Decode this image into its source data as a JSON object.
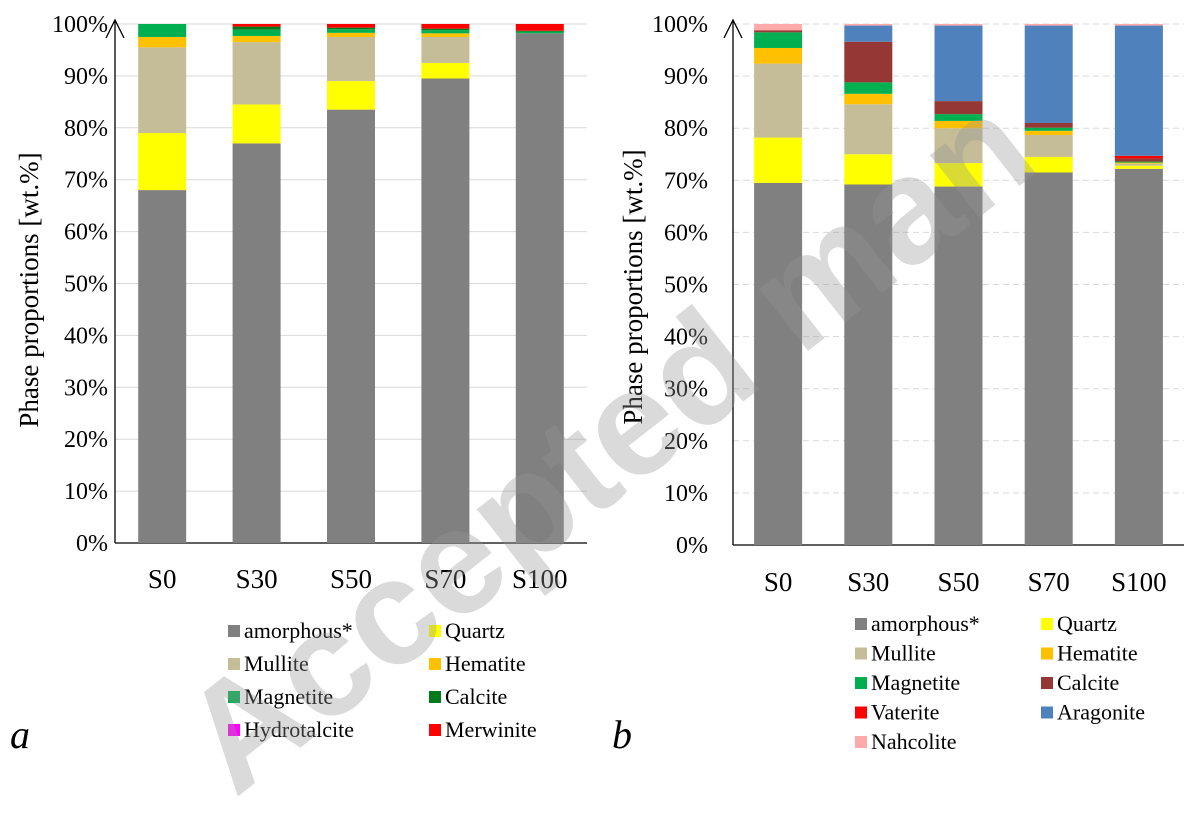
{
  "watermark": "Accepted man",
  "colors": {
    "amorphous*": "#808080",
    "Quartz": "#ffff00",
    "Mullite": "#c4bd97",
    "Hematite": "#ffc000",
    "Magnetite": "#00b050",
    "Calcite_a": "#007a1a",
    "Calcite_b": "#953735",
    "Hydrotalcite": "#ff00ff",
    "Merwinite": "#ff0000",
    "Vaterite": "#ff0000",
    "Aragonite": "#4f81bd",
    "Nahcolite": "#ffaaaa"
  },
  "chart_data": [
    {
      "panel": "a",
      "type": "bar",
      "stacked": true,
      "ylabel": "Phase proportions [wt.%]",
      "ylim": [
        0,
        100
      ],
      "yticks": [
        "0%",
        "10%",
        "20%",
        "30%",
        "40%",
        "50%",
        "60%",
        "70%",
        "80%",
        "90%",
        "100%"
      ],
      "grid": true,
      "legend_position": "bottom",
      "categories": [
        "S0",
        "S30",
        "S50",
        "S70",
        "S100"
      ],
      "series": [
        {
          "name": "amorphous*",
          "color_key": "amorphous*",
          "values": [
            68.0,
            77.0,
            83.5,
            89.5,
            98.2
          ]
        },
        {
          "name": "Quartz",
          "color_key": "Quartz",
          "values": [
            11.0,
            7.5,
            5.5,
            3.0,
            0.0
          ]
        },
        {
          "name": "Mullite",
          "color_key": "Mullite",
          "values": [
            16.5,
            12.0,
            8.5,
            5.0,
            0.0
          ]
        },
        {
          "name": "Hematite",
          "color_key": "Hematite",
          "values": [
            2.0,
            1.2,
            0.8,
            0.7,
            0.0
          ]
        },
        {
          "name": "Magnetite",
          "color_key": "Magnetite",
          "values": [
            2.5,
            1.2,
            0.7,
            0.6,
            0.3
          ]
        },
        {
          "name": "Calcite",
          "color_key": "Calcite_a",
          "values": [
            0.0,
            0.6,
            0.3,
            0.3,
            0.2
          ]
        },
        {
          "name": "Hydrotalcite",
          "color_key": "Hydrotalcite",
          "values": [
            0.0,
            0.0,
            0.0,
            0.0,
            0.0
          ]
        },
        {
          "name": "Merwinite",
          "color_key": "Merwinite",
          "values": [
            0.0,
            0.5,
            0.7,
            0.9,
            1.3
          ]
        }
      ]
    },
    {
      "panel": "b",
      "type": "bar",
      "stacked": true,
      "ylabel": "Phase proportions [wt.%]",
      "ylim": [
        0,
        100
      ],
      "yticks": [
        "0%",
        "10%",
        "20%",
        "30%",
        "40%",
        "50%",
        "60%",
        "70%",
        "80%",
        "90%",
        "100%"
      ],
      "grid": true,
      "legend_position": "bottom",
      "categories": [
        "S0",
        "S30",
        "S50",
        "S70",
        "S100"
      ],
      "series": [
        {
          "name": "amorphous*",
          "color_key": "amorphous*",
          "values": [
            69.5,
            69.2,
            68.8,
            71.5,
            72.2
          ]
        },
        {
          "name": "Quartz",
          "color_key": "Quartz",
          "values": [
            8.7,
            5.8,
            4.5,
            3.0,
            0.6
          ]
        },
        {
          "name": "Mullite",
          "color_key": "Mullite",
          "values": [
            14.2,
            9.6,
            6.7,
            4.2,
            0.4
          ]
        },
        {
          "name": "Hematite",
          "color_key": "Hematite",
          "values": [
            3.0,
            2.0,
            1.4,
            0.8,
            0.2
          ]
        },
        {
          "name": "Magnetite",
          "color_key": "Magnetite",
          "values": [
            3.0,
            2.2,
            1.3,
            0.6,
            0.2
          ]
        },
        {
          "name": "Calcite",
          "color_key": "Calcite_b",
          "values": [
            0.4,
            7.8,
            2.5,
            0.9,
            0.6
          ]
        },
        {
          "name": "Vaterite",
          "color_key": "Vaterite",
          "values": [
            0.0,
            0.0,
            0.0,
            0.0,
            0.5
          ]
        },
        {
          "name": "Aragonite",
          "color_key": "Aragonite",
          "values": [
            0.0,
            3.1,
            14.5,
            18.7,
            25.0
          ]
        },
        {
          "name": "Nahcolite",
          "color_key": "Nahcolite",
          "values": [
            1.2,
            0.3,
            0.3,
            0.3,
            0.3
          ]
        }
      ]
    }
  ],
  "panel_letters": [
    "a",
    "b"
  ]
}
